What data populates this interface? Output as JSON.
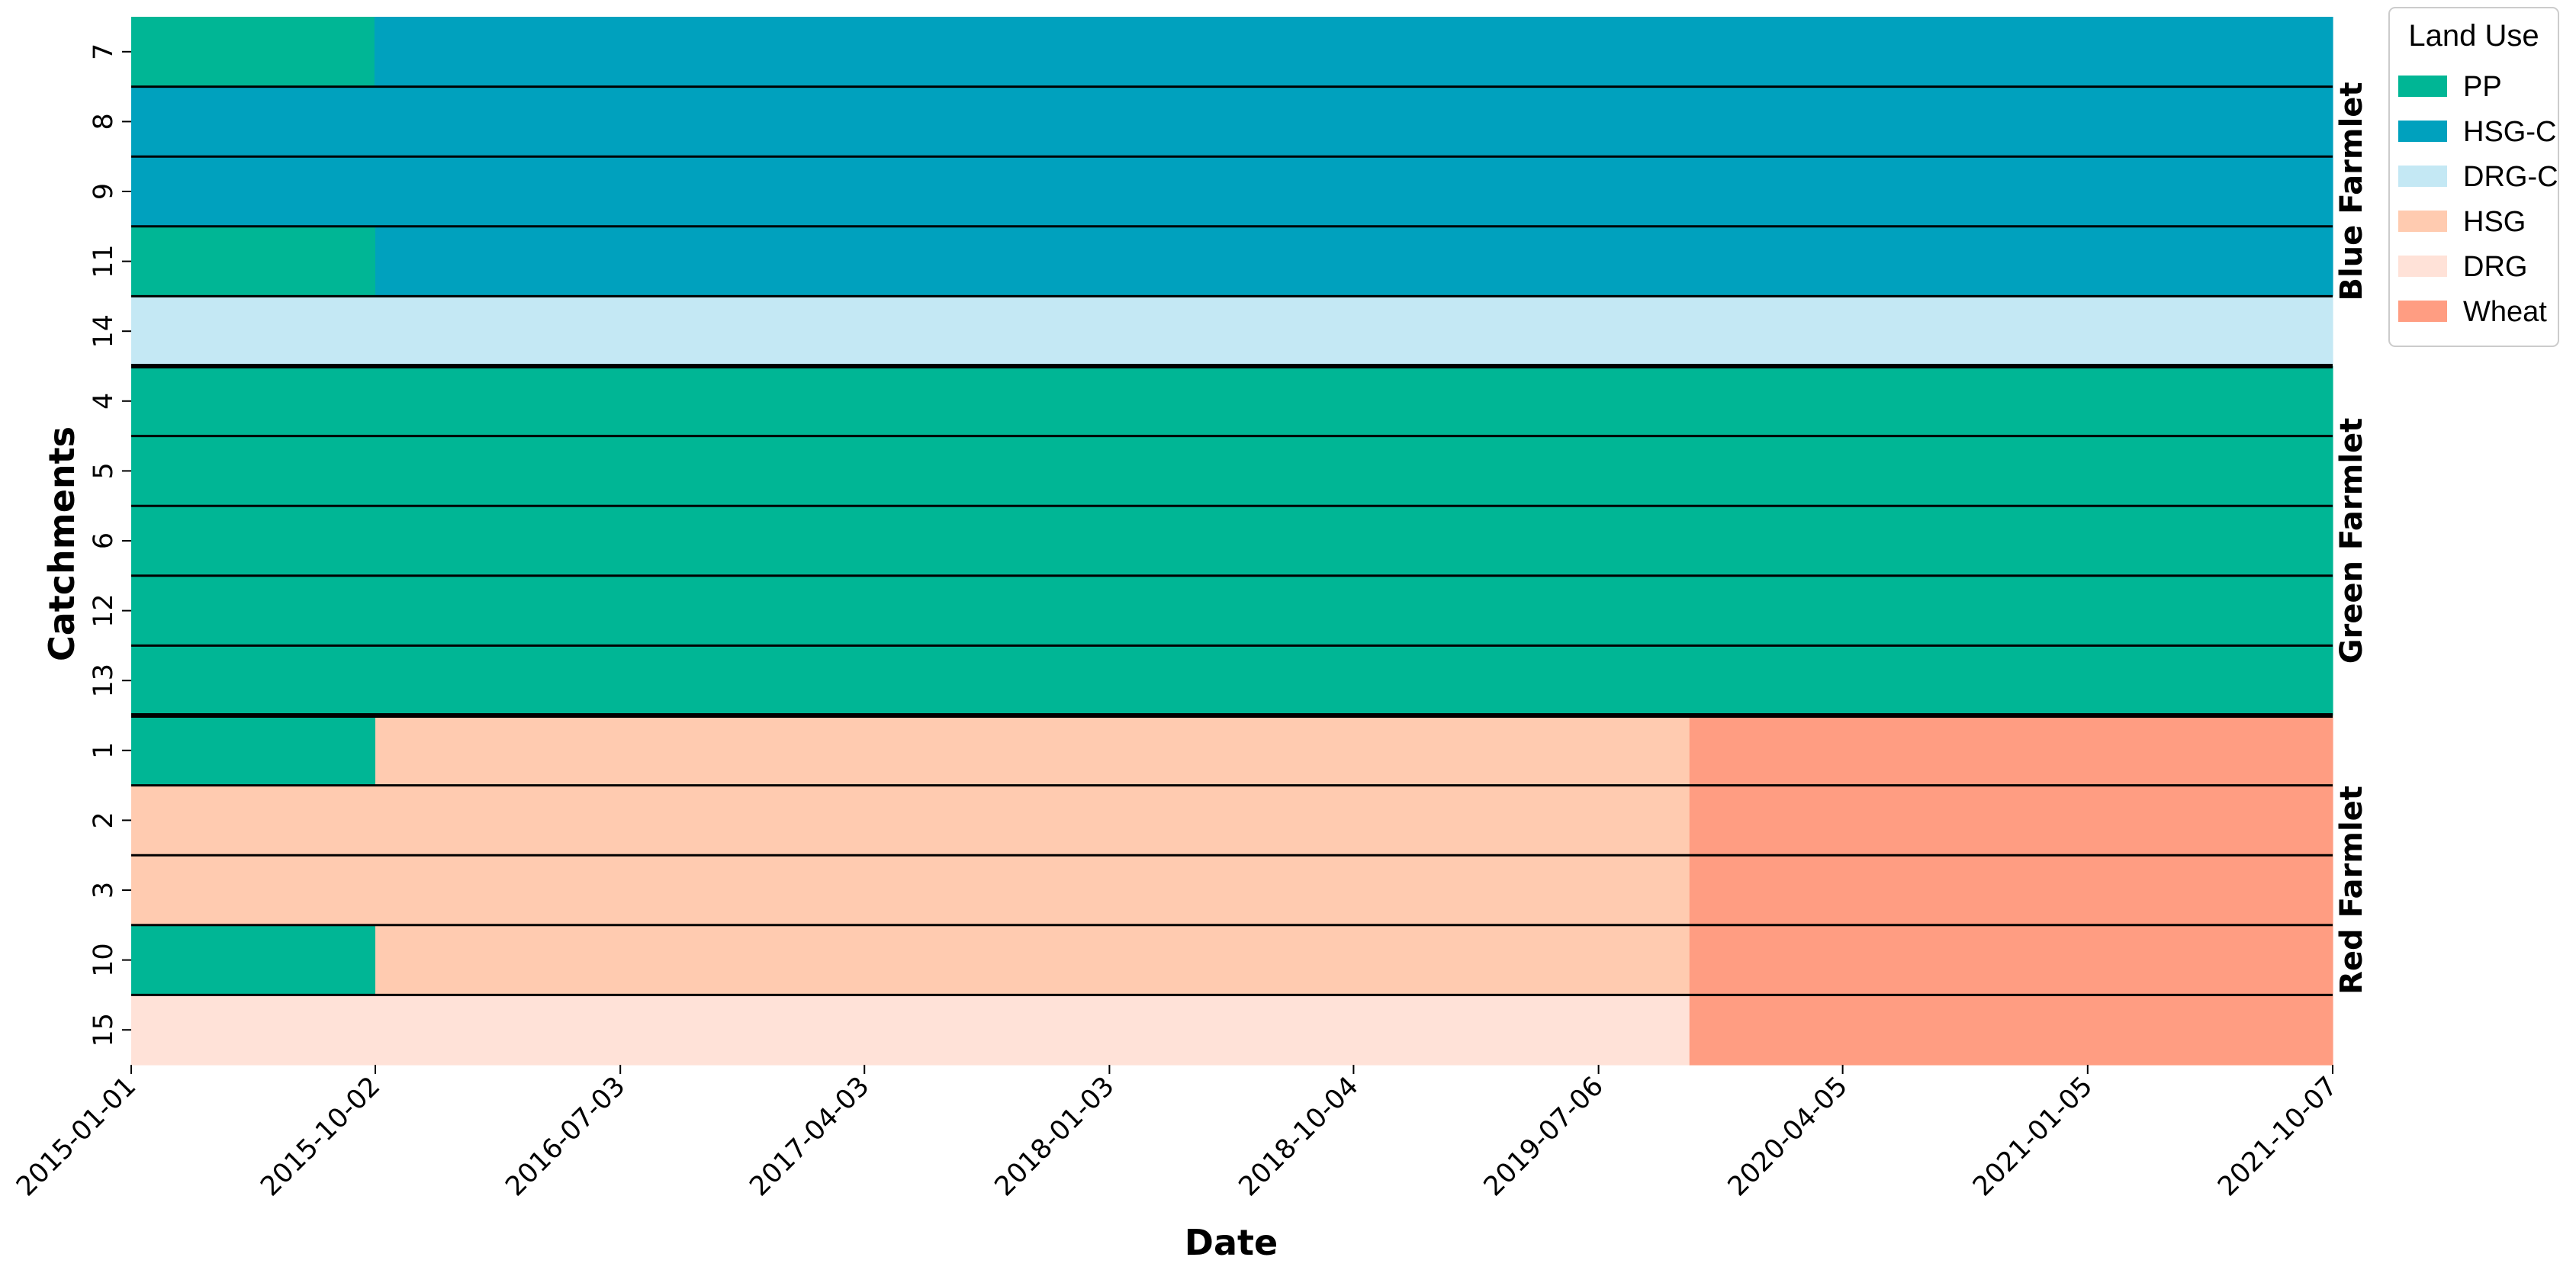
{
  "chart_data": {
    "type": "heatmap",
    "xlabel": "Date",
    "ylabel": "Catchments",
    "x_tick_labels": [
      "2015-01-01",
      "2015-10-02",
      "2016-07-03",
      "2017-04-03",
      "2018-01-03",
      "2018-10-04",
      "2019-07-06",
      "2020-04-05",
      "2021-01-05",
      "2021-10-07"
    ],
    "x_range": [
      "2015-01-01",
      "2021-10-07"
    ],
    "legend": {
      "title": "Land Use",
      "placement": "top-right outside",
      "entries": [
        {
          "label": "PP",
          "color": "#00b695"
        },
        {
          "label": "HSG-C",
          "color": "#00a1be"
        },
        {
          "label": "DRG-C",
          "color": "#c4e8f4"
        },
        {
          "label": "HSG",
          "color": "#ffcbb0"
        },
        {
          "label": "DRG",
          "color": "#ffe2d8"
        },
        {
          "label": "Wheat",
          "color": "#ff9d82"
        }
      ]
    },
    "groups": [
      {
        "name": "Blue Farmlet",
        "rows": [
          {
            "catchment": "7",
            "segments": [
              {
                "start": "2015-01-01",
                "end": "2015-10-01",
                "land_use": "PP"
              },
              {
                "start": "2015-10-01",
                "end": "2021-10-07",
                "land_use": "HSG-C"
              }
            ]
          },
          {
            "catchment": "8",
            "segments": [
              {
                "start": "2015-01-01",
                "end": "2021-10-07",
                "land_use": "HSG-C"
              }
            ]
          },
          {
            "catchment": "9",
            "segments": [
              {
                "start": "2015-01-01",
                "end": "2021-10-07",
                "land_use": "HSG-C"
              }
            ]
          },
          {
            "catchment": "11",
            "segments": [
              {
                "start": "2015-01-01",
                "end": "2015-10-02",
                "land_use": "PP"
              },
              {
                "start": "2015-10-02",
                "end": "2021-10-07",
                "land_use": "HSG-C"
              }
            ]
          },
          {
            "catchment": "14",
            "segments": [
              {
                "start": "2015-01-01",
                "end": "2021-10-07",
                "land_use": "DRG-C"
              }
            ]
          }
        ]
      },
      {
        "name": "Green Farmlet",
        "rows": [
          {
            "catchment": "4",
            "segments": [
              {
                "start": "2015-01-01",
                "end": "2021-10-07",
                "land_use": "PP"
              }
            ]
          },
          {
            "catchment": "5",
            "segments": [
              {
                "start": "2015-01-01",
                "end": "2021-10-07",
                "land_use": "PP"
              }
            ]
          },
          {
            "catchment": "6",
            "segments": [
              {
                "start": "2015-01-01",
                "end": "2021-10-07",
                "land_use": "PP"
              }
            ]
          },
          {
            "catchment": "12",
            "segments": [
              {
                "start": "2015-01-01",
                "end": "2021-10-07",
                "land_use": "PP"
              }
            ]
          },
          {
            "catchment": "13",
            "segments": [
              {
                "start": "2015-01-01",
                "end": "2021-10-07",
                "land_use": "PP"
              }
            ]
          }
        ]
      },
      {
        "name": "Red Farmlet",
        "rows": [
          {
            "catchment": "1",
            "segments": [
              {
                "start": "2015-01-01",
                "end": "2015-10-02",
                "land_use": "PP"
              },
              {
                "start": "2015-10-02",
                "end": "2019-10-16",
                "land_use": "HSG"
              },
              {
                "start": "2019-10-16",
                "end": "2021-10-07",
                "land_use": "Wheat"
              }
            ]
          },
          {
            "catchment": "2",
            "segments": [
              {
                "start": "2015-01-01",
                "end": "2019-10-16",
                "land_use": "HSG"
              },
              {
                "start": "2019-10-16",
                "end": "2021-10-07",
                "land_use": "Wheat"
              }
            ]
          },
          {
            "catchment": "3",
            "segments": [
              {
                "start": "2015-01-01",
                "end": "2019-10-16",
                "land_use": "HSG"
              },
              {
                "start": "2019-10-16",
                "end": "2021-10-07",
                "land_use": "Wheat"
              }
            ]
          },
          {
            "catchment": "10",
            "segments": [
              {
                "start": "2015-01-01",
                "end": "2015-10-02",
                "land_use": "PP"
              },
              {
                "start": "2015-10-02",
                "end": "2019-10-16",
                "land_use": "HSG"
              },
              {
                "start": "2019-10-16",
                "end": "2021-10-07",
                "land_use": "Wheat"
              }
            ]
          },
          {
            "catchment": "15",
            "segments": [
              {
                "start": "2015-01-01",
                "end": "2019-10-16",
                "land_use": "DRG"
              },
              {
                "start": "2019-10-16",
                "end": "2021-10-07",
                "land_use": "Wheat"
              }
            ]
          }
        ]
      }
    ]
  }
}
